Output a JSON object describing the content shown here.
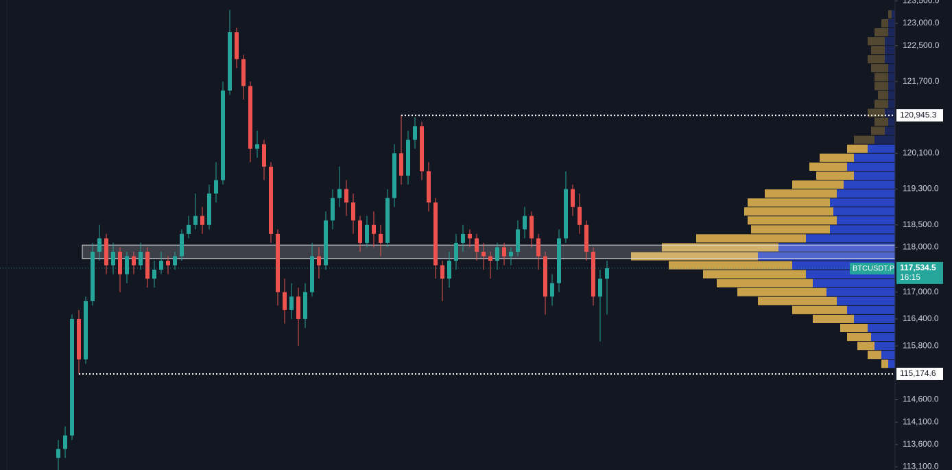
{
  "chart_data": {
    "type": "candlestick",
    "symbol": "BTCUSDT.P",
    "countdown": "16:15",
    "up_color": "#26a69a",
    "down_color": "#ef5350",
    "ylim": [
      113030,
      123520
    ],
    "yticks": [
      {
        "value": 123500,
        "label": "123,500.0"
      },
      {
        "value": 123000,
        "label": "123,000.0"
      },
      {
        "value": 122500,
        "label": "122,500.0"
      },
      {
        "value": 121700,
        "label": "121,700.0"
      },
      {
        "value": 120100,
        "label": "120,100.0"
      },
      {
        "value": 119300,
        "label": "119,300.0"
      },
      {
        "value": 118500,
        "label": "118,500.0"
      },
      {
        "value": 118000,
        "label": "118,000.0"
      },
      {
        "value": 117000,
        "label": "117,000.0"
      },
      {
        "value": 116400,
        "label": "116,400.0"
      },
      {
        "value": 115800,
        "label": "115,800.0"
      },
      {
        "value": 114600,
        "label": "114,600.0"
      },
      {
        "value": 114100,
        "label": "114,100.0"
      },
      {
        "value": 113600,
        "label": "113,600.0"
      },
      {
        "value": 113100,
        "label": "113,100.0"
      }
    ],
    "high_marker": {
      "value": 120945.3,
      "label": "120,945.3"
    },
    "low_marker": {
      "value": 115174.6,
      "label": "115,174.6"
    },
    "last_price": {
      "value": 117534.5,
      "label": "117,534.5"
    },
    "value_area": [
      117750,
      118050
    ],
    "candles": [
      [
        113300,
        113700,
        112900,
        113500
      ],
      [
        113500,
        114000,
        113300,
        113800
      ],
      [
        113800,
        116500,
        113700,
        116400
      ],
      [
        116400,
        116600,
        115174.6,
        115500
      ],
      [
        115500,
        116900,
        115400,
        116800
      ],
      [
        116800,
        118100,
        116700,
        117900
      ],
      [
        117900,
        118500,
        117700,
        118200
      ],
      [
        118200,
        118300,
        117400,
        117600
      ],
      [
        117600,
        118100,
        117400,
        117900
      ],
      [
        117900,
        118000,
        117000,
        117400
      ],
      [
        117400,
        117900,
        117200,
        117800
      ],
      [
        117800,
        117900,
        117400,
        117600
      ],
      [
        117600,
        118100,
        117500,
        117900
      ],
      [
        117900,
        118000,
        117100,
        117300
      ],
      [
        117300,
        117700,
        117100,
        117500
      ],
      [
        117500,
        117900,
        117400,
        117700
      ],
      [
        117700,
        117800,
        117400,
        117600
      ],
      [
        117600,
        117900,
        117500,
        117800
      ],
      [
        117800,
        118400,
        117700,
        118300
      ],
      [
        118300,
        118700,
        118200,
        118500
      ],
      [
        118500,
        119200,
        118400,
        118700
      ],
      [
        118700,
        118900,
        118300,
        118500
      ],
      [
        118500,
        119400,
        118400,
        119200
      ],
      [
        119200,
        119900,
        119000,
        119500
      ],
      [
        119500,
        121700,
        119400,
        121500
      ],
      [
        121500,
        123300,
        121400,
        122800
      ],
      [
        122800,
        122900,
        122000,
        122200
      ],
      [
        122200,
        122300,
        121300,
        121600
      ],
      [
        121600,
        121700,
        119900,
        120200
      ],
      [
        120200,
        120600,
        120000,
        120300
      ],
      [
        120300,
        120400,
        119500,
        119800
      ],
      [
        119800,
        119900,
        118100,
        118300
      ],
      [
        118300,
        118400,
        116700,
        117000
      ],
      [
        117000,
        117300,
        116300,
        116600
      ],
      [
        116600,
        117200,
        116400,
        116900
      ],
      [
        116900,
        117100,
        115800,
        116400
      ],
      [
        116400,
        117200,
        116200,
        117000
      ],
      [
        117000,
        118100,
        116900,
        117800
      ],
      [
        117800,
        118000,
        117300,
        117600
      ],
      [
        117600,
        118800,
        117500,
        118600
      ],
      [
        118600,
        119300,
        118400,
        119100
      ],
      [
        119100,
        119800,
        118900,
        119300
      ],
      [
        119300,
        119500,
        118700,
        119000
      ],
      [
        119000,
        119200,
        118300,
        118600
      ],
      [
        118600,
        118700,
        117900,
        118100
      ],
      [
        118100,
        118700,
        118000,
        118500
      ],
      [
        118500,
        118800,
        118000,
        118300
      ],
      [
        118300,
        118500,
        117800,
        118100
      ],
      [
        118100,
        119300,
        118000,
        119100
      ],
      [
        119100,
        120300,
        118900,
        120100
      ],
      [
        120100,
        120945.3,
        119400,
        119600
      ],
      [
        119600,
        120600,
        119400,
        120400
      ],
      [
        120400,
        120900,
        120200,
        120700
      ],
      [
        120700,
        120800,
        119500,
        119700
      ],
      [
        119700,
        119900,
        118800,
        119000
      ],
      [
        119000,
        119100,
        117300,
        117600
      ],
      [
        117600,
        117700,
        116800,
        117300
      ],
      [
        117300,
        117900,
        117100,
        117700
      ],
      [
        117700,
        118300,
        117500,
        118100
      ],
      [
        118100,
        118500,
        117900,
        118300
      ],
      [
        118300,
        118400,
        118000,
        118200
      ],
      [
        118200,
        118300,
        117700,
        117900
      ],
      [
        117900,
        118100,
        117500,
        117800
      ],
      [
        117800,
        117900,
        117300,
        117700
      ],
      [
        117700,
        118100,
        117500,
        118000
      ],
      [
        118000,
        118100,
        117600,
        117800
      ],
      [
        117800,
        118000,
        117600,
        117900
      ],
      [
        117900,
        118600,
        117800,
        118400
      ],
      [
        118400,
        118900,
        118200,
        118700
      ],
      [
        118700,
        118800,
        118000,
        118200
      ],
      [
        118200,
        118300,
        117500,
        117800
      ],
      [
        117800,
        117900,
        116500,
        116900
      ],
      [
        116900,
        117400,
        116700,
        117200
      ],
      [
        117200,
        118400,
        117000,
        118200
      ],
      [
        118200,
        119700,
        118100,
        119300
      ],
      [
        119300,
        119400,
        118700,
        118900
      ],
      [
        118900,
        119200,
        118300,
        118500
      ],
      [
        118500,
        118600,
        117700,
        117900
      ],
      [
        117900,
        118000,
        116700,
        116900
      ],
      [
        116900,
        117500,
        115900,
        117300
      ],
      [
        117300,
        117700,
        116500,
        117534.5
      ]
    ],
    "volume_profile": {
      "blue_color": "#2a45c4",
      "gold_color": "#c9a14a",
      "prices": [
        123200,
        123000,
        122800,
        122600,
        122400,
        122200,
        122000,
        121800,
        121600,
        121400,
        121200,
        121000,
        120800,
        120600,
        120400,
        120200,
        120000,
        119800,
        119600,
        119400,
        119200,
        119000,
        118800,
        118600,
        118400,
        118200,
        118000,
        117800,
        117600,
        117400,
        117200,
        117000,
        116800,
        116600,
        116400,
        116200,
        116000,
        115800,
        115600,
        115400
      ],
      "blue": [
        5,
        10,
        10,
        15,
        15,
        15,
        10,
        10,
        10,
        10,
        10,
        15,
        10,
        15,
        30,
        40,
        60,
        70,
        60,
        75,
        85,
        95,
        90,
        85,
        95,
        130,
        170,
        200,
        150,
        130,
        120,
        100,
        85,
        70,
        60,
        40,
        35,
        30,
        20,
        10
      ],
      "gold": [
        5,
        10,
        20,
        25,
        20,
        25,
        25,
        20,
        20,
        15,
        20,
        25,
        20,
        20,
        30,
        30,
        50,
        55,
        55,
        75,
        105,
        120,
        130,
        130,
        115,
        160,
        170,
        185,
        180,
        150,
        140,
        130,
        115,
        80,
        60,
        40,
        35,
        25,
        20,
        10
      ]
    }
  }
}
